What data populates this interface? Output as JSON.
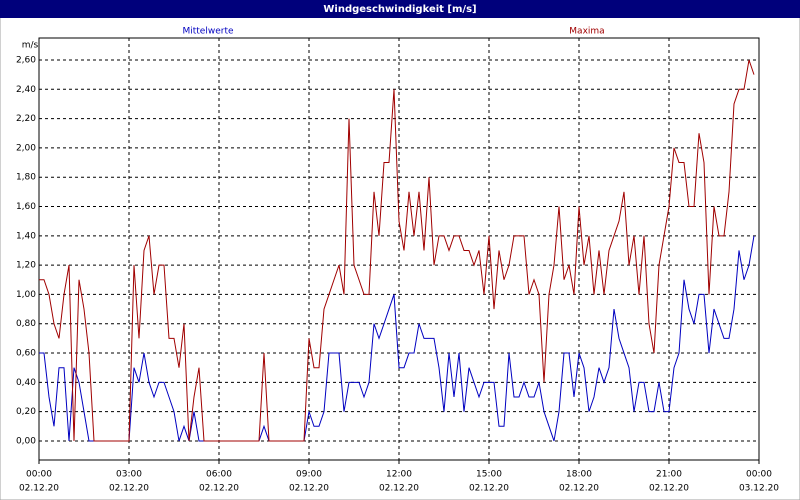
{
  "chart_data": {
    "type": "line",
    "title": "Windgeschwindigkeit [m/s]",
    "y_unit": "m/s",
    "x": [
      0,
      10,
      20,
      30,
      40,
      50,
      60,
      70,
      80,
      90,
      100,
      110,
      120,
      130,
      140,
      150,
      160,
      170,
      180,
      190,
      200,
      210,
      220,
      230,
      240,
      250,
      260,
      270,
      280,
      290,
      300,
      310,
      320,
      330,
      340,
      350,
      360,
      370,
      380,
      390,
      400,
      410,
      420,
      430,
      440,
      450,
      460,
      470,
      480,
      490,
      500,
      510,
      520,
      530,
      540,
      550,
      560,
      570,
      580,
      590,
      600,
      610,
      620,
      630,
      640,
      650,
      660,
      670,
      680,
      690,
      700,
      710,
      720,
      730,
      740,
      750,
      760,
      770,
      780,
      790,
      800,
      810,
      820,
      830,
      840,
      850,
      860,
      870,
      880,
      890,
      900,
      910,
      920,
      930,
      940,
      950,
      960,
      970,
      980,
      990,
      1000,
      1010,
      1020,
      1030,
      1040,
      1050,
      1060,
      1070,
      1080,
      1090,
      1100,
      1110,
      1120,
      1130,
      1140,
      1150,
      1160,
      1170,
      1180,
      1190,
      1200,
      1210,
      1220,
      1230,
      1240,
      1250,
      1260,
      1270,
      1280,
      1290,
      1300,
      1310,
      1320,
      1330,
      1340,
      1350,
      1360,
      1370,
      1380,
      1390,
      1400,
      1410,
      1420,
      1430
    ],
    "series": [
      {
        "name": "Mittelwerte",
        "color": "#0000c0",
        "values": [
          0.6,
          0.6,
          0.3,
          0.1,
          0.5,
          0.5,
          0.0,
          0.5,
          0.4,
          0.2,
          0.0,
          0,
          0,
          0,
          0,
          0,
          0,
          0,
          0,
          0.5,
          0.4,
          0.6,
          0.4,
          0.3,
          0.4,
          0.4,
          0.3,
          0.2,
          0.0,
          0.1,
          0.0,
          0.2,
          0.0,
          0,
          0,
          0,
          0,
          0,
          0,
          0,
          0,
          0,
          0,
          0,
          0,
          0.1,
          0,
          0,
          0,
          0,
          0,
          0,
          0,
          0,
          0.2,
          0.1,
          0.1,
          0.2,
          0.6,
          0.6,
          0.6,
          0.2,
          0.4,
          0.4,
          0.4,
          0.3,
          0.4,
          0.8,
          0.7,
          0.8,
          0.9,
          1.0,
          0.5,
          0.5,
          0.6,
          0.6,
          0.8,
          0.7,
          0.7,
          0.7,
          0.5,
          0.2,
          0.6,
          0.3,
          0.6,
          0.2,
          0.5,
          0.4,
          0.3,
          0.4,
          0.4,
          0.4,
          0.1,
          0.1,
          0.6,
          0.3,
          0.3,
          0.4,
          0.3,
          0.3,
          0.4,
          0.2,
          0.1,
          0.0,
          0.2,
          0.6,
          0.6,
          0.3,
          0.6,
          0.5,
          0.2,
          0.3,
          0.5,
          0.4,
          0.5,
          0.9,
          0.7,
          0.6,
          0.5,
          0.2,
          0.4,
          0.4,
          0.2,
          0.2,
          0.4,
          0.2,
          0.2,
          0.5,
          0.6,
          1.1,
          0.9,
          0.8,
          1.0,
          1.0,
          0.6,
          0.9,
          0.8,
          0.7,
          0.7,
          0.9,
          1.3,
          1.1,
          1.2,
          1.4
        ]
      },
      {
        "name": "Maxima",
        "color": "#a00000",
        "values": [
          1.1,
          1.1,
          1.0,
          0.8,
          0.7,
          1.0,
          1.2,
          0.0,
          1.1,
          0.9,
          0.6,
          0.0,
          0,
          0,
          0,
          0,
          0,
          0,
          0,
          1.2,
          0.7,
          1.3,
          1.4,
          1.0,
          1.2,
          1.2,
          0.7,
          0.7,
          0.5,
          0.8,
          0.0,
          0.3,
          0.5,
          0.0,
          0,
          0,
          0,
          0,
          0,
          0,
          0,
          0,
          0,
          0,
          0,
          0.6,
          0,
          0,
          0,
          0,
          0,
          0,
          0,
          0,
          0.7,
          0.5,
          0.5,
          0.9,
          1.0,
          1.1,
          1.2,
          1.0,
          2.2,
          1.2,
          1.1,
          1.0,
          1.0,
          1.7,
          1.4,
          1.9,
          1.9,
          2.4,
          1.5,
          1.3,
          1.7,
          1.4,
          1.7,
          1.3,
          1.8,
          1.2,
          1.4,
          1.4,
          1.3,
          1.4,
          1.4,
          1.3,
          1.3,
          1.2,
          1.3,
          1.0,
          1.4,
          0.9,
          1.3,
          1.1,
          1.2,
          1.4,
          1.4,
          1.4,
          1.0,
          1.1,
          1.0,
          0.4,
          1.0,
          1.2,
          1.6,
          1.1,
          1.2,
          1.0,
          1.6,
          1.2,
          1.4,
          1.0,
          1.3,
          1.0,
          1.3,
          1.4,
          1.5,
          1.7,
          1.2,
          1.4,
          1.0,
          1.4,
          0.8,
          0.6,
          1.2,
          1.4,
          1.6,
          2.0,
          1.9,
          1.9,
          1.6,
          1.6,
          2.1,
          1.9,
          1.0,
          1.6,
          1.4,
          1.4,
          1.7,
          2.3,
          2.4,
          2.4,
          2.6,
          2.5
        ]
      }
    ],
    "xlim": [
      0,
      1440
    ],
    "xticks": [
      {
        "value": 0,
        "label": "00:00",
        "date": "02.12.20"
      },
      {
        "value": 180,
        "label": "03:00",
        "date": "02.12.20"
      },
      {
        "value": 360,
        "label": "06:00",
        "date": "02.12.20"
      },
      {
        "value": 540,
        "label": "09:00",
        "date": "02.12.20"
      },
      {
        "value": 720,
        "label": "12:00",
        "date": "02.12.20"
      },
      {
        "value": 900,
        "label": "15:00",
        "date": "02.12.20"
      },
      {
        "value": 1080,
        "label": "18:00",
        "date": "02.12.20"
      },
      {
        "value": 1260,
        "label": "21:00",
        "date": "02.12.20"
      },
      {
        "value": 1440,
        "label": "00:00",
        "date": "03.12.20"
      }
    ],
    "ylim": [
      -0.13,
      2.75
    ],
    "yticks": [
      {
        "value": 0,
        "label": "0,00"
      },
      {
        "value": 0.2,
        "label": "0,20"
      },
      {
        "value": 0.4,
        "label": "0,40"
      },
      {
        "value": 0.6,
        "label": "0,60"
      },
      {
        "value": 0.8,
        "label": "0,80"
      },
      {
        "value": 1.0,
        "label": "1,00"
      },
      {
        "value": 1.2,
        "label": "1,20"
      },
      {
        "value": 1.4,
        "label": "1,40"
      },
      {
        "value": 1.6,
        "label": "1,60"
      },
      {
        "value": 1.8,
        "label": "1,80"
      },
      {
        "value": 2.0,
        "label": "2,00"
      },
      {
        "value": 2.2,
        "label": "2,20"
      },
      {
        "value": 2.4,
        "label": "2,40"
      },
      {
        "value": 2.6,
        "label": "2,60"
      }
    ],
    "grid": true
  }
}
